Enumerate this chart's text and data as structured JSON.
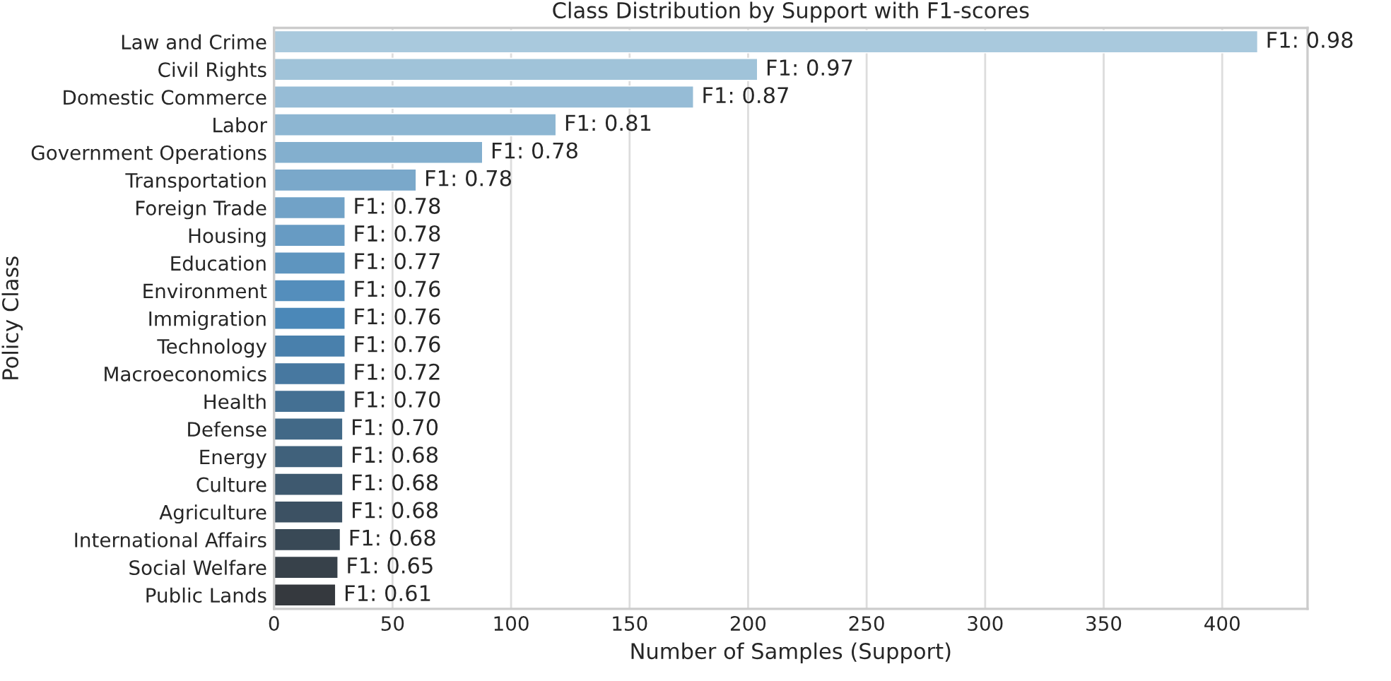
{
  "chart_data": {
    "type": "bar",
    "orientation": "horizontal",
    "title": "Class Distribution by Support with F1-scores",
    "xlabel": "Number of Samples (Support)",
    "ylabel": "Policy Class",
    "categories": [
      "Law and Crime",
      "Civil Rights",
      "Domestic Commerce",
      "Labor",
      "Government Operations",
      "Transportation",
      "Foreign Trade",
      "Housing",
      "Education",
      "Environment",
      "Immigration",
      "Technology",
      "Macroeconomics",
      "Health",
      "Defense",
      "Energy",
      "Culture",
      "Agriculture",
      "International Affairs",
      "Social Welfare",
      "Public Lands"
    ],
    "values": [
      415,
      204,
      177,
      119,
      88,
      60,
      30,
      30,
      30,
      30,
      30,
      30,
      30,
      30,
      29,
      29,
      29,
      29,
      28,
      27,
      26
    ],
    "colors": [
      "#a9c9dd",
      "#a0c3d9",
      "#96bcd6",
      "#8db6d2",
      "#83afce",
      "#7aa8ca",
      "#71a2c7",
      "#679bc3",
      "#5e95bf",
      "#548ebc",
      "#4b88b8",
      "#4980ac",
      "#4778a0",
      "#447093",
      "#426987",
      "#40617b",
      "#3e596f",
      "#3c5163",
      "#394956",
      "#37414a",
      "#35393e"
    ],
    "xlim": [
      0,
      436
    ],
    "xticks": [
      0,
      50,
      100,
      150,
      200,
      250,
      300,
      350,
      400
    ],
    "grid": "x",
    "value_labels": [
      "F1: 0.98",
      "F1: 0.97",
      "F1: 0.87",
      "F1: 0.81",
      "F1: 0.78",
      "F1: 0.78",
      "F1: 0.78",
      "F1: 0.78",
      "F1: 0.77",
      "F1: 0.76",
      "F1: 0.76",
      "F1: 0.76",
      "F1: 0.72",
      "F1: 0.70",
      "F1: 0.70",
      "F1: 0.68",
      "F1: 0.68",
      "F1: 0.68",
      "F1: 0.68",
      "F1: 0.65",
      "F1: 0.61"
    ]
  }
}
